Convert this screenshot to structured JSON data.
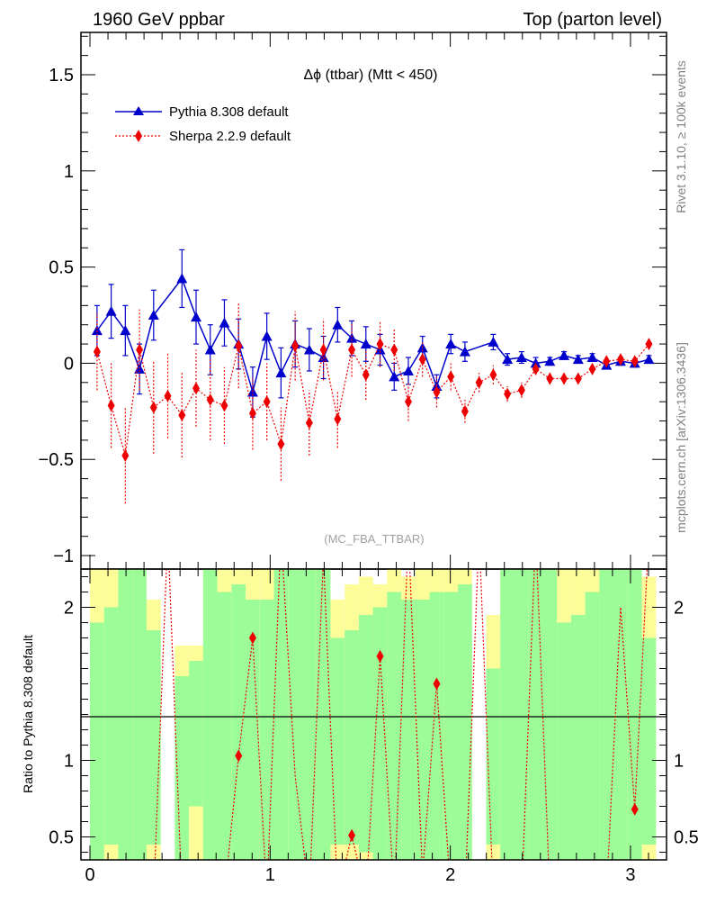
{
  "header": {
    "left_title": "1960 GeV ppbar",
    "right_title": "Top (parton level)"
  },
  "side_labels": {
    "rivet": "Rivet 3.1.10, ≥ 100k events",
    "mcplots": "mcplots.cern.ch [arXiv:1306.3436]"
  },
  "chart_data": [
    {
      "type": "line",
      "title": "Δϕ (ttbar) (Mtt < 450)",
      "watermark": "(MC_FBA_TTBAR)",
      "xlabel": "",
      "ylabel": "",
      "xlim": [
        -0.05,
        3.2
      ],
      "ylim": [
        -1.07,
        1.72
      ],
      "yticks": [
        -1,
        -0.5,
        0,
        0.5,
        1,
        1.5
      ],
      "ytick_labels": [
        "−1",
        "−0.5",
        "0",
        "0.5",
        "1",
        "1.5"
      ],
      "xticks": [
        0,
        1,
        2,
        3
      ],
      "legend_position": "top-left",
      "series": [
        {
          "name": "Pythia 8.308 default",
          "color": "#0000cc",
          "marker": "triangle",
          "line": "solid",
          "x": [
            0.0393,
            0.1178,
            0.1963,
            0.2749,
            0.3534,
            0.5105,
            0.589,
            0.6676,
            0.7461,
            0.8247,
            0.9032,
            0.9817,
            1.0603,
            1.1388,
            1.2174,
            1.2959,
            1.3744,
            1.453,
            1.5315,
            1.6101,
            1.6886,
            1.7671,
            1.8457,
            1.9242,
            2.0028,
            2.0813,
            2.2384,
            2.3169,
            2.3955,
            2.474,
            2.5525,
            2.6311,
            2.7096,
            2.7882,
            2.8667,
            2.9452,
            3.0238,
            3.1023
          ],
          "y": [
            0.17,
            0.27,
            0.17,
            -0.03,
            0.25,
            0.44,
            0.24,
            0.07,
            0.21,
            0.1,
            -0.15,
            0.14,
            -0.05,
            0.1,
            0.07,
            0.03,
            0.2,
            0.13,
            0.1,
            0.07,
            -0.07,
            -0.04,
            0.08,
            -0.12,
            0.1,
            0.06,
            0.11,
            0.02,
            0.03,
            0.0,
            0.01,
            0.04,
            0.02,
            0.03,
            -0.01,
            0.01,
            0.0,
            0.02
          ],
          "err": [
            0.13,
            0.14,
            0.13,
            0.13,
            0.13,
            0.15,
            0.14,
            0.13,
            0.12,
            0.13,
            0.13,
            0.12,
            0.13,
            0.12,
            0.11,
            0.11,
            0.09,
            0.09,
            0.09,
            0.08,
            0.07,
            0.07,
            0.06,
            0.06,
            0.05,
            0.05,
            0.04,
            0.03,
            0.03,
            0.03,
            0.02,
            0.02,
            0.02,
            0.02,
            0.02,
            0.02,
            0.02,
            0.02
          ]
        },
        {
          "name": "Sherpa 2.2.9 default",
          "color": "#ee0000",
          "marker": "diamond",
          "line": "dotted",
          "x": [
            0.0393,
            0.1178,
            0.1963,
            0.2749,
            0.3534,
            0.4319,
            0.5105,
            0.589,
            0.6676,
            0.7461,
            0.8247,
            0.9032,
            0.9817,
            1.0603,
            1.1388,
            1.2174,
            1.2959,
            1.3744,
            1.453,
            1.5315,
            1.6101,
            1.6886,
            1.7671,
            1.8457,
            1.9242,
            2.0028,
            2.0813,
            2.1598,
            2.2384,
            2.3169,
            2.3955,
            2.474,
            2.5525,
            2.6311,
            2.7096,
            2.7882,
            2.8667,
            2.9452,
            3.0238,
            3.1023
          ],
          "y": [
            0.06,
            -0.22,
            -0.48,
            0.07,
            -0.23,
            -0.17,
            -0.27,
            -0.13,
            -0.19,
            -0.22,
            0.09,
            -0.26,
            -0.2,
            -0.42,
            0.09,
            -0.31,
            0.07,
            -0.29,
            0.07,
            -0.06,
            0.1,
            0.07,
            -0.2,
            0.02,
            -0.15,
            -0.07,
            -0.25,
            -0.1,
            -0.06,
            -0.16,
            -0.14,
            -0.03,
            -0.08,
            -0.08,
            -0.08,
            -0.03,
            0.01,
            0.02,
            0.01,
            0.1
          ],
          "err": [
            0.2,
            0.22,
            0.25,
            0.21,
            0.24,
            0.22,
            0.22,
            0.2,
            0.21,
            0.2,
            0.22,
            0.19,
            0.2,
            0.19,
            0.18,
            0.17,
            0.16,
            0.15,
            0.14,
            0.13,
            0.12,
            0.11,
            0.1,
            0.09,
            0.08,
            0.07,
            0.06,
            0.05,
            0.05,
            0.04,
            0.04,
            0.03,
            0.03,
            0.03,
            0.02,
            0.02,
            0.02,
            0.02,
            0.02,
            0.02
          ]
        }
      ]
    },
    {
      "type": "line",
      "title": "",
      "xlabel": "",
      "ylabel": "Ratio to Pythia 8.308 default",
      "xlim": [
        -0.05,
        3.2
      ],
      "ylim": [
        0.35,
        2.25
      ],
      "yticks": [
        0.5,
        1,
        2
      ],
      "ytick_labels": [
        "0.5",
        "1",
        "2"
      ],
      "xticks": [
        0,
        1,
        2,
        3
      ],
      "xtick_labels": [
        "0",
        "1",
        "2",
        "3"
      ],
      "reference_line": 1,
      "band_colors": {
        "inner": "#9cfc98",
        "outer": "#fcfc98"
      },
      "bands": [
        {
          "x0": 0.0,
          "x1": 0.0785,
          "inner": [
            0.35,
            1.9
          ],
          "outer": [
            0.35,
            2.25
          ]
        },
        {
          "x0": 0.0785,
          "x1": 0.157,
          "inner": [
            0.45,
            2.0
          ],
          "outer": [
            0.35,
            2.25
          ]
        },
        {
          "x0": 0.157,
          "x1": 0.2356,
          "inner": [
            0.35,
            2.25
          ],
          "outer": [
            0.35,
            2.25
          ]
        },
        {
          "x0": 0.2356,
          "x1": 0.3141,
          "inner": [
            0.35,
            2.25
          ],
          "outer": [
            0.35,
            2.25
          ]
        },
        {
          "x0": 0.3141,
          "x1": 0.3927,
          "inner": [
            0.45,
            1.85
          ],
          "outer": [
            0.35,
            2.05
          ]
        },
        {
          "x0": 0.4712,
          "x1": 0.5497,
          "inner": [
            0.35,
            1.55
          ],
          "outer": [
            0.35,
            1.75
          ]
        },
        {
          "x0": 0.5497,
          "x1": 0.6283,
          "inner": [
            0.7,
            1.65
          ],
          "outer": [
            0.35,
            1.75
          ]
        },
        {
          "x0": 0.6283,
          "x1": 0.7068,
          "inner": [
            0.35,
            2.25
          ],
          "outer": [
            0.35,
            2.25
          ]
        },
        {
          "x0": 0.7068,
          "x1": 0.7854,
          "inner": [
            0.35,
            2.1
          ],
          "outer": [
            0.35,
            2.25
          ]
        },
        {
          "x0": 0.7854,
          "x1": 0.8639,
          "inner": [
            0.35,
            2.15
          ],
          "outer": [
            0.35,
            2.25
          ]
        },
        {
          "x0": 0.8639,
          "x1": 0.9424,
          "inner": [
            0.35,
            2.05
          ],
          "outer": [
            0.35,
            2.25
          ]
        },
        {
          "x0": 0.9424,
          "x1": 1.021,
          "inner": [
            0.35,
            2.05
          ],
          "outer": [
            0.35,
            2.25
          ]
        },
        {
          "x0": 1.021,
          "x1": 1.0995,
          "inner": [
            0.35,
            2.25
          ],
          "outer": [
            0.35,
            2.25
          ]
        },
        {
          "x0": 1.0995,
          "x1": 1.1781,
          "inner": [
            0.35,
            2.25
          ],
          "outer": [
            0.35,
            2.25
          ]
        },
        {
          "x0": 1.1781,
          "x1": 1.2566,
          "inner": [
            0.35,
            2.25
          ],
          "outer": [
            0.35,
            2.25
          ]
        },
        {
          "x0": 1.2566,
          "x1": 1.3352,
          "inner": [
            0.35,
            2.25
          ],
          "outer": [
            0.35,
            2.25
          ]
        },
        {
          "x0": 1.3352,
          "x1": 1.4137,
          "inner": [
            0.45,
            1.8
          ],
          "outer": [
            0.35,
            2.05
          ]
        },
        {
          "x0": 1.4137,
          "x1": 1.4922,
          "inner": [
            0.45,
            1.85
          ],
          "outer": [
            0.35,
            2.15
          ]
        },
        {
          "x0": 1.4922,
          "x1": 1.5708,
          "inner": [
            0.4,
            1.95
          ],
          "outer": [
            0.35,
            2.2
          ]
        },
        {
          "x0": 1.5708,
          "x1": 1.6493,
          "inner": [
            0.35,
            2.0
          ],
          "outer": [
            0.35,
            2.15
          ]
        },
        {
          "x0": 1.6493,
          "x1": 1.7279,
          "inner": [
            0.35,
            2.1
          ],
          "outer": [
            0.35,
            2.25
          ]
        },
        {
          "x0": 1.7279,
          "x1": 1.8064,
          "inner": [
            0.35,
            2.05
          ],
          "outer": [
            0.35,
            2.2
          ]
        },
        {
          "x0": 1.8064,
          "x1": 1.885,
          "inner": [
            0.35,
            2.05
          ],
          "outer": [
            0.35,
            2.25
          ]
        },
        {
          "x0": 1.885,
          "x1": 1.9635,
          "inner": [
            0.35,
            2.1
          ],
          "outer": [
            0.35,
            2.25
          ]
        },
        {
          "x0": 1.9635,
          "x1": 2.042,
          "inner": [
            0.35,
            2.1
          ],
          "outer": [
            0.35,
            2.25
          ]
        },
        {
          "x0": 2.042,
          "x1": 2.1206,
          "inner": [
            0.35,
            2.15
          ],
          "outer": [
            0.35,
            2.25
          ]
        },
        {
          "x0": 2.1991,
          "x1": 2.2777,
          "inner": [
            0.45,
            1.6
          ],
          "outer": [
            0.35,
            1.95
          ]
        },
        {
          "x0": 2.2777,
          "x1": 2.3562,
          "inner": [
            0.35,
            2.25
          ],
          "outer": [
            0.35,
            2.25
          ]
        },
        {
          "x0": 2.3562,
          "x1": 2.4347,
          "inner": [
            0.35,
            2.25
          ],
          "outer": [
            0.35,
            2.25
          ]
        },
        {
          "x0": 2.4347,
          "x1": 2.5133,
          "inner": [
            0.35,
            2.25
          ],
          "outer": [
            0.35,
            2.25
          ]
        },
        {
          "x0": 2.5133,
          "x1": 2.5918,
          "inner": [
            0.35,
            2.25
          ],
          "outer": [
            0.35,
            2.25
          ]
        },
        {
          "x0": 2.5918,
          "x1": 2.6704,
          "inner": [
            0.35,
            1.9
          ],
          "outer": [
            0.35,
            2.25
          ]
        },
        {
          "x0": 2.6704,
          "x1": 2.7489,
          "inner": [
            0.35,
            1.95
          ],
          "outer": [
            0.35,
            2.25
          ]
        },
        {
          "x0": 2.7489,
          "x1": 2.8274,
          "inner": [
            0.35,
            2.1
          ],
          "outer": [
            0.35,
            2.25
          ]
        },
        {
          "x0": 2.8274,
          "x1": 2.906,
          "inner": [
            0.35,
            2.25
          ],
          "outer": [
            0.35,
            2.25
          ]
        },
        {
          "x0": 2.906,
          "x1": 2.9845,
          "inner": [
            0.35,
            2.25
          ],
          "outer": [
            0.35,
            2.25
          ]
        },
        {
          "x0": 2.9845,
          "x1": 3.0631,
          "inner": [
            0.35,
            2.25
          ],
          "outer": [
            0.35,
            2.25
          ]
        },
        {
          "x0": 3.0631,
          "x1": 3.1416,
          "inner": [
            0.45,
            1.8
          ],
          "outer": [
            0.35,
            2.2
          ]
        }
      ],
      "series": [
        {
          "name": "Sherpa 2.2.9 default",
          "color": "#ee0000",
          "marker": "diamond",
          "line": "dotted",
          "x": [
            0.8247,
            0.9032,
            1.453,
            1.6101,
            1.9242,
            3.0238
          ],
          "y": [
            1.03,
            1.8,
            0.51,
            1.68,
            1.5,
            0.68
          ]
        }
      ]
    }
  ]
}
